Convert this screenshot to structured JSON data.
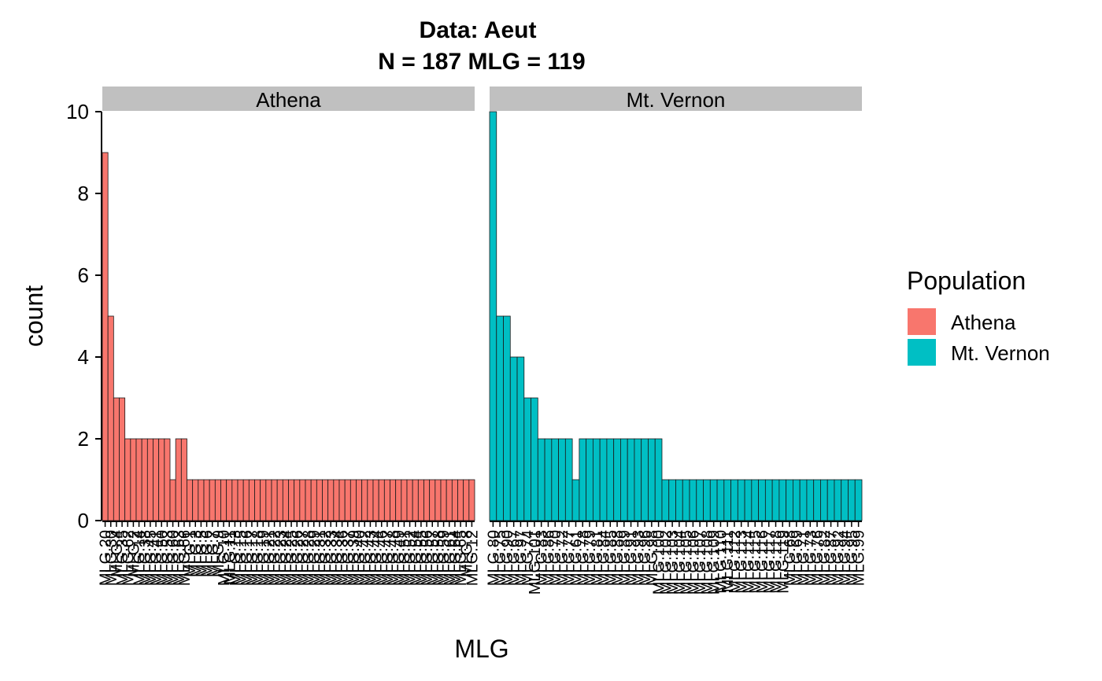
{
  "chart_data": {
    "type": "bar",
    "title": "Data: Aeut",
    "subtitle": "N = 187 MLG = 119",
    "xlabel": "MLG",
    "ylabel": "count",
    "ylim": [
      0,
      10
    ],
    "yticks": [
      "0",
      "2",
      "4",
      "6",
      "8",
      "10"
    ],
    "grid": false,
    "legend": {
      "title": "Population",
      "position": "right",
      "entries": [
        {
          "label": "Athena",
          "color": "#F8766D"
        },
        {
          "label": "Mt. Vernon",
          "color": "#00BFC4"
        }
      ]
    },
    "panels": [
      {
        "name": "Athena",
        "color": "#F8766D",
        "values": [
          9,
          5,
          3,
          3,
          2,
          2,
          2,
          2,
          2,
          2,
          2,
          2,
          1,
          2,
          2,
          1,
          1,
          1,
          1,
          1,
          1,
          1,
          1,
          1,
          1,
          1,
          1,
          1,
          1,
          1,
          1,
          1,
          1,
          1,
          1,
          1,
          1,
          1,
          1,
          1,
          1,
          1,
          1,
          1,
          1,
          1,
          1,
          1,
          1,
          1,
          1,
          1,
          1,
          1,
          1,
          1,
          1,
          1,
          1,
          1,
          1,
          1,
          1,
          1,
          1,
          1
        ],
        "categories": [
          "MLG.20",
          "MLG.30",
          "MLG.4",
          "MLG.35",
          "MLG.62",
          "MLG.2",
          "MLG.14",
          "MLG.38",
          "MLG.45",
          "MLG.41",
          "MLG.50",
          "MLG.53",
          "MLG.60",
          "MLG.63",
          "MLG.66",
          "MLG.1",
          "MLG.3",
          "MLG.5",
          "MLG.6",
          "MLG.7",
          "MLG.9",
          "MLG.10",
          "MLG.11",
          "MLG.13",
          "MLG.15",
          "MLG.16",
          "MLG.17",
          "MLG.18",
          "MLG.19",
          "MLG.21",
          "MLG.22",
          "MLG.23",
          "MLG.24",
          "MLG.25",
          "MLG.26",
          "MLG.27",
          "MLG.28",
          "MLG.29",
          "MLG.31",
          "MLG.32",
          "MLG.33",
          "MLG.34",
          "MLG.36",
          "MLG.37",
          "MLG.39",
          "MLG.40",
          "MLG.42",
          "MLG.43",
          "MLG.44",
          "MLG.46",
          "MLG.47",
          "MLG.48",
          "MLG.49",
          "MLG.51",
          "MLG.52",
          "MLG.54",
          "MLG.55",
          "MLG.56",
          "MLG.57",
          "MLG.58",
          "MLG.59",
          "MLG.61",
          "MLG.64",
          "MLG.65",
          "MLG.8",
          "MLG.12"
        ]
      },
      {
        "name": "Mt. Vernon",
        "color": "#00BFC4",
        "values": [
          10,
          5,
          5,
          4,
          4,
          3,
          3,
          2,
          2,
          2,
          2,
          2,
          1,
          2,
          2,
          2,
          2,
          2,
          2,
          2,
          2,
          2,
          2,
          2,
          2,
          1,
          1,
          1,
          1,
          1,
          1,
          1,
          1,
          1,
          1,
          1,
          1,
          1,
          1,
          1,
          1,
          1,
          1,
          1,
          1,
          1,
          1,
          1,
          1,
          1,
          1,
          1,
          1,
          1
        ],
        "categories": [
          "MLG.80",
          "MLG.75",
          "MLG.90",
          "MLG.67",
          "MLG.97",
          "MLG.74",
          "MLG.101",
          "MLG.83",
          "MLG.86",
          "MLG.70",
          "MLG.72",
          "MLG.77",
          "MLG.61",
          "MLG.78",
          "MLG.79",
          "MLG.81",
          "MLG.84",
          "MLG.85",
          "MLG.88",
          "MLG.89",
          "MLG.91",
          "MLG.93",
          "MLG.96",
          "MLG.98",
          "MLG.100",
          "MLG.102",
          "MLG.103",
          "MLG.104",
          "MLG.105",
          "MLG.106",
          "MLG.107",
          "MLG.108",
          "MLG.109",
          "MLG.110",
          "MLG.111",
          "MLG.112",
          "MLG.113",
          "MLG.114",
          "MLG.115",
          "MLG.116",
          "MLG.117",
          "MLG.118",
          "MLG.119",
          "MLG.68",
          "MLG.69",
          "MLG.71",
          "MLG.73",
          "MLG.76",
          "MLG.82",
          "MLG.87",
          "MLG.92",
          "MLG.94",
          "MLG.95",
          "MLG.99"
        ]
      }
    ]
  }
}
